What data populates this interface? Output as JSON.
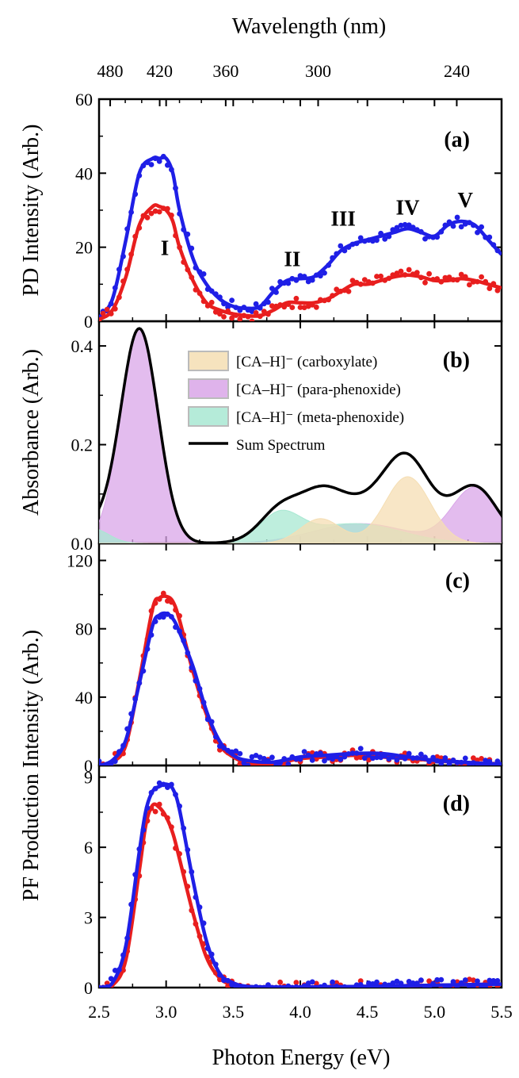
{
  "figure": {
    "x_title": "Photon Energy (eV)",
    "top_axis_title": "Wavelength (nm)",
    "top_ticks": [
      480,
      420,
      360,
      300,
      240
    ],
    "x_ticks": [
      "2.5",
      "3.0",
      "3.5",
      "4.0",
      "4.5",
      "5.0",
      "5.5"
    ]
  },
  "colors": {
    "blue": "#1f1fe6",
    "red": "#e81e1e",
    "black": "#000000",
    "carboxylate_fill": "#f5deb3",
    "para_fill": "#d9a6e8",
    "meta_fill": "#a8e8d2"
  },
  "panels": [
    {
      "label": "(a)",
      "ylabel": "PD Intensity (Arb.)",
      "yticks": [
        "0",
        "20",
        "40",
        "60"
      ],
      "peak_labels": [
        {
          "text": "I",
          "x": 2.99,
          "y": 20
        },
        {
          "text": "II",
          "x": 3.94,
          "y": 17
        },
        {
          "text": "III",
          "x": 4.32,
          "y": 28
        },
        {
          "text": "IV",
          "x": 4.8,
          "y": 31
        },
        {
          "text": "V",
          "x": 5.23,
          "y": 33
        }
      ]
    },
    {
      "label": "(b)",
      "ylabel": "Absorbance (Arb.)",
      "yticks": [
        "0.0",
        "0.2",
        "0.4"
      ],
      "legend": [
        {
          "text": "[CA–H]⁻ (carboxylate)",
          "type": "box",
          "color_key": "carboxylate_fill"
        },
        {
          "text": "[CA–H]⁻ (para-phenoxide)",
          "type": "box",
          "color_key": "para_fill"
        },
        {
          "text": "[CA–H]⁻ (meta-phenoxide)",
          "type": "box",
          "color_key": "meta_fill"
        },
        {
          "text": "Sum Spectrum",
          "type": "line",
          "color_key": "black"
        }
      ]
    },
    {
      "label": "(c)",
      "ylabel": "",
      "yticks": [
        "0",
        "40",
        "80",
        "120"
      ]
    },
    {
      "label": "(d)",
      "ylabel": "",
      "yticks": [
        "0",
        "3",
        "6",
        "9"
      ]
    }
  ],
  "shared_ylabel": "PF Production Intensity (Arb.)",
  "chart_data": [
    {
      "type": "scatter",
      "panel": "(a)",
      "ylabel": "PD Intensity (Arb.)",
      "xlim": [
        2.5,
        5.5
      ],
      "ylim": [
        0,
        60
      ],
      "series": [
        {
          "color": "blue",
          "x": [
            2.5,
            2.6,
            2.7,
            2.8,
            2.9,
            2.95,
            3.0,
            3.05,
            3.1,
            3.2,
            3.3,
            3.4,
            3.5,
            3.6,
            3.7,
            3.8,
            3.9,
            4.0,
            4.1,
            4.2,
            4.3,
            4.4,
            4.5,
            4.6,
            4.7,
            4.8,
            4.9,
            5.0,
            5.1,
            5.2,
            5.3,
            5.4,
            5.5
          ],
          "y": [
            1,
            6,
            22,
            40,
            44,
            44,
            44,
            40,
            30,
            17,
            10,
            6,
            4,
            3.5,
            4,
            8,
            11,
            11.5,
            12,
            15,
            19,
            21,
            22,
            23,
            24,
            25,
            24,
            23,
            26,
            27,
            26,
            22,
            18
          ]
        },
        {
          "color": "red",
          "x": [
            2.5,
            2.6,
            2.7,
            2.8,
            2.9,
            2.95,
            3.0,
            3.05,
            3.1,
            3.2,
            3.3,
            3.4,
            3.5,
            3.6,
            3.7,
            3.8,
            3.9,
            4.0,
            4.1,
            4.2,
            4.3,
            4.4,
            4.5,
            4.6,
            4.7,
            4.8,
            4.9,
            5.0,
            5.1,
            5.2,
            5.3,
            5.4,
            5.5
          ],
          "y": [
            0.5,
            3,
            12,
            26,
            31,
            31,
            30,
            27,
            20,
            11,
            5,
            3,
            2,
            1.5,
            1.5,
            3,
            5,
            5,
            5,
            6,
            8,
            10,
            10,
            11,
            12,
            12.5,
            12,
            11,
            11,
            11.5,
            11,
            10,
            9
          ]
        }
      ]
    },
    {
      "type": "area",
      "panel": "(b)",
      "ylabel": "Absorbance (Arb.)",
      "xlim": [
        2.5,
        5.5
      ],
      "ylim": [
        0,
        0.45
      ],
      "components": [
        {
          "name": "[CA–H]⁻ (carboxylate)",
          "color": "carboxylate_fill",
          "peaks": [
            {
              "c": 4.15,
              "h": 0.05,
              "w": 0.15
            },
            {
              "c": 4.8,
              "h": 0.135,
              "w": 0.17
            }
          ]
        },
        {
          "name": "[CA–H]⁻ (para-phenoxide)",
          "color": "para_fill",
          "peaks": [
            {
              "c": 2.8,
              "h": 0.435,
              "w": 0.14
            },
            {
              "c": 5.3,
              "h": 0.112,
              "w": 0.17
            },
            {
              "c": 4.45,
              "h": 0.04,
              "w": 0.35
            }
          ]
        },
        {
          "name": "[CA–H]⁻ (meta-phenoxide)",
          "color": "meta_fill",
          "peaks": [
            {
              "c": 3.85,
              "h": 0.055,
              "w": 0.15
            },
            {
              "c": 4.4,
              "h": 0.04,
              "w": 0.35
            },
            {
              "c": 2.45,
              "h": 0.03,
              "w": 0.12
            }
          ]
        }
      ],
      "sum_spectrum": {
        "name": "Sum Spectrum",
        "color": "black"
      }
    },
    {
      "type": "scatter",
      "panel": "(c)",
      "ylabel": "PF Production Intensity (Arb.)",
      "xlim": [
        2.5,
        5.5
      ],
      "ylim": [
        0,
        130
      ],
      "series": [
        {
          "color": "red",
          "x": [
            2.5,
            2.6,
            2.7,
            2.8,
            2.9,
            2.95,
            3.0,
            3.05,
            3.1,
            3.2,
            3.3,
            3.4,
            3.5,
            3.6,
            3.8,
            4.0,
            4.2,
            4.4,
            4.6,
            4.8,
            5.0,
            5.2,
            5.4,
            5.5
          ],
          "y": [
            0,
            2,
            12,
            50,
            92,
            98,
            99,
            96,
            85,
            55,
            30,
            12,
            5,
            2,
            1,
            4,
            5,
            6,
            5,
            4,
            3,
            2,
            1,
            1
          ]
        },
        {
          "color": "blue",
          "x": [
            2.5,
            2.6,
            2.7,
            2.8,
            2.9,
            2.95,
            3.0,
            3.05,
            3.1,
            3.2,
            3.3,
            3.4,
            3.5,
            3.6,
            3.8,
            4.0,
            4.2,
            4.4,
            4.6,
            4.8,
            5.0,
            5.2,
            5.4,
            5.5
          ],
          "y": [
            0,
            3,
            15,
            48,
            82,
            88,
            89,
            86,
            78,
            58,
            32,
            14,
            6,
            3,
            2,
            5,
            6,
            7,
            7,
            5,
            3,
            2,
            1,
            1
          ]
        }
      ]
    },
    {
      "type": "scatter",
      "panel": "(d)",
      "ylabel": "PF Production Intensity (Arb.)",
      "xlim": [
        2.5,
        5.5
      ],
      "ylim": [
        0,
        9.5
      ],
      "series": [
        {
          "color": "red",
          "x": [
            2.5,
            2.6,
            2.7,
            2.8,
            2.85,
            2.9,
            2.95,
            3.0,
            3.05,
            3.1,
            3.2,
            3.3,
            3.4,
            3.5,
            3.6,
            3.8,
            4.0,
            4.5,
            5.0,
            5.5
          ],
          "y": [
            0,
            0.1,
            1.2,
            5.0,
            7.0,
            7.8,
            7.7,
            7.3,
            6.6,
            5.5,
            3.2,
            1.3,
            0.4,
            0.1,
            0,
            0,
            0,
            0.05,
            0.1,
            0.15
          ]
        },
        {
          "color": "blue",
          "x": [
            2.5,
            2.6,
            2.7,
            2.8,
            2.85,
            2.9,
            2.95,
            3.0,
            3.05,
            3.1,
            3.2,
            3.3,
            3.4,
            3.5,
            3.6,
            3.8,
            4.0,
            4.5,
            5.0,
            5.5
          ],
          "y": [
            0,
            0.2,
            1.8,
            5.8,
            7.6,
            8.4,
            8.6,
            8.7,
            8.5,
            7.6,
            4.6,
            2.0,
            0.6,
            0.2,
            0.05,
            0.02,
            0.02,
            0.05,
            0.1,
            0.15
          ]
        }
      ]
    }
  ]
}
